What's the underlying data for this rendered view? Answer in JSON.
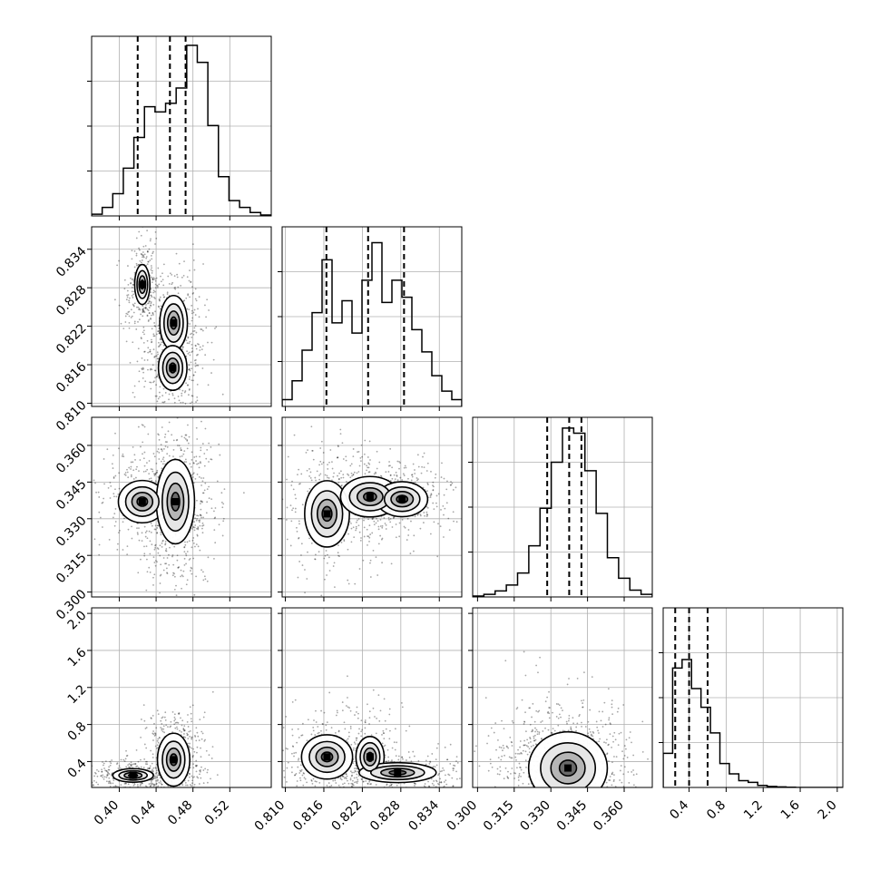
{
  "chart_data": {
    "type": "corner",
    "parameters": 4,
    "grid": true,
    "axes": [
      {
        "range": [
          0.37,
          0.565
        ],
        "ticks": [
          0.4,
          0.44,
          0.48,
          0.52
        ],
        "tick_labels": [
          "0.40",
          "0.44",
          "0.48",
          "0.52"
        ]
      },
      {
        "range": [
          0.8095,
          0.8375
        ],
        "ticks": [
          0.81,
          0.816,
          0.822,
          0.828,
          0.834
        ],
        "tick_labels": [
          "0.810",
          "0.816",
          "0.822",
          "0.828",
          "0.834"
        ]
      },
      {
        "range": [
          0.298,
          0.3715
        ],
        "ticks": [
          0.3,
          0.315,
          0.33,
          0.345,
          0.36
        ],
        "tick_labels": [
          "0.300",
          "0.315",
          "0.330",
          "0.345",
          "0.360"
        ]
      },
      {
        "range": [
          0.12,
          2.06
        ],
        "ticks": [
          0.4,
          0.8,
          1.2,
          1.6,
          2.0
        ],
        "tick_labels": [
          "0.4",
          "0.8",
          "1.2",
          "1.6",
          "2.0"
        ]
      }
    ],
    "quantiles": [
      [
        0.42,
        0.455,
        0.472
      ],
      [
        0.8164,
        0.8229,
        0.8285
      ],
      [
        0.3285,
        0.3375,
        0.3425
      ],
      [
        0.25,
        0.4,
        0.6
      ]
    ],
    "histograms": [
      {
        "values": [
          0.01,
          0.05,
          0.13,
          0.28,
          0.46,
          0.64,
          0.61,
          0.66,
          0.75,
          1.0,
          0.9,
          0.53,
          0.23,
          0.09,
          0.05,
          0.02,
          0.005
        ]
      },
      {
        "values": [
          0.04,
          0.15,
          0.33,
          0.55,
          0.86,
          0.49,
          0.62,
          0.43,
          0.74,
          0.96,
          0.61,
          0.74,
          0.64,
          0.45,
          0.32,
          0.18,
          0.09,
          0.04
        ]
      },
      {
        "values": [
          0.005,
          0.015,
          0.035,
          0.07,
          0.14,
          0.3,
          0.52,
          0.79,
          0.99,
          0.96,
          0.74,
          0.49,
          0.23,
          0.11,
          0.04,
          0.015
        ]
      },
      {
        "values": [
          0.2,
          0.7,
          0.75,
          0.58,
          0.47,
          0.32,
          0.14,
          0.08,
          0.04,
          0.03,
          0.012,
          0.006,
          0.003,
          0.001,
          0.0,
          0.0,
          0.0,
          0.0,
          0.0
        ]
      }
    ],
    "density_modes": [
      {
        "pair": [
          0,
          1
        ],
        "modes": [
          [
            0.425,
            0.8285,
            0.0045,
            0.0017,
            0.55
          ],
          [
            0.459,
            0.8225,
            0.007,
            0.002,
            0.85
          ],
          [
            0.458,
            0.8155,
            0.008,
            0.0018,
            0.65
          ]
        ]
      },
      {
        "pair": [
          0,
          2
        ],
        "modes": [
          [
            0.425,
            0.337,
            0.015,
            0.005,
            0.45
          ],
          [
            0.461,
            0.337,
            0.009,
            0.0075,
            1.0
          ]
        ]
      },
      {
        "pair": [
          1,
          2
        ],
        "modes": [
          [
            0.8165,
            0.332,
            0.0018,
            0.007,
            0.65
          ],
          [
            0.8232,
            0.339,
            0.002,
            0.0036,
            1.0
          ],
          [
            0.8282,
            0.338,
            0.002,
            0.0036,
            0.7
          ]
        ]
      },
      {
        "pair": [
          0,
          3
        ],
        "modes": [
          [
            0.415,
            0.25,
            0.012,
            0.04,
            0.55
          ],
          [
            0.459,
            0.42,
            0.008,
            0.13,
            0.9
          ]
        ]
      },
      {
        "pair": [
          1,
          3
        ],
        "modes": [
          [
            0.8165,
            0.45,
            0.002,
            0.12,
            0.7
          ],
          [
            0.8232,
            0.45,
            0.0012,
            0.12,
            0.55
          ],
          [
            0.8275,
            0.28,
            0.0028,
            0.05,
            0.85
          ]
        ]
      },
      {
        "pair": [
          2,
          3
        ],
        "modes": [
          [
            0.337,
            0.33,
            0.007,
            0.17,
            1.0
          ]
        ]
      }
    ]
  }
}
